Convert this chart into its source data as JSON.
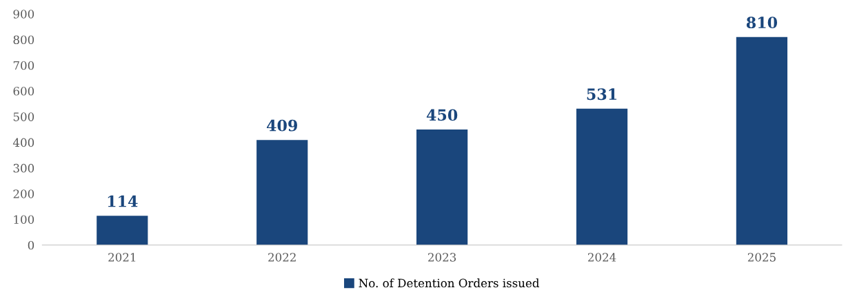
{
  "chart_data": {
    "type": "bar",
    "categories": [
      "2021",
      "2022",
      "2023",
      "2024",
      "2025"
    ],
    "series": [
      {
        "name": "No. of Detention Orders issued",
        "color": "#1a467c",
        "values": [
          114,
          409,
          450,
          531,
          810
        ]
      }
    ],
    "ylim": [
      0,
      900
    ],
    "yticks": [
      0,
      100,
      200,
      300,
      400,
      500,
      600,
      700,
      800,
      900
    ],
    "data_labels": true,
    "grid": false,
    "legend": "bottom"
  }
}
